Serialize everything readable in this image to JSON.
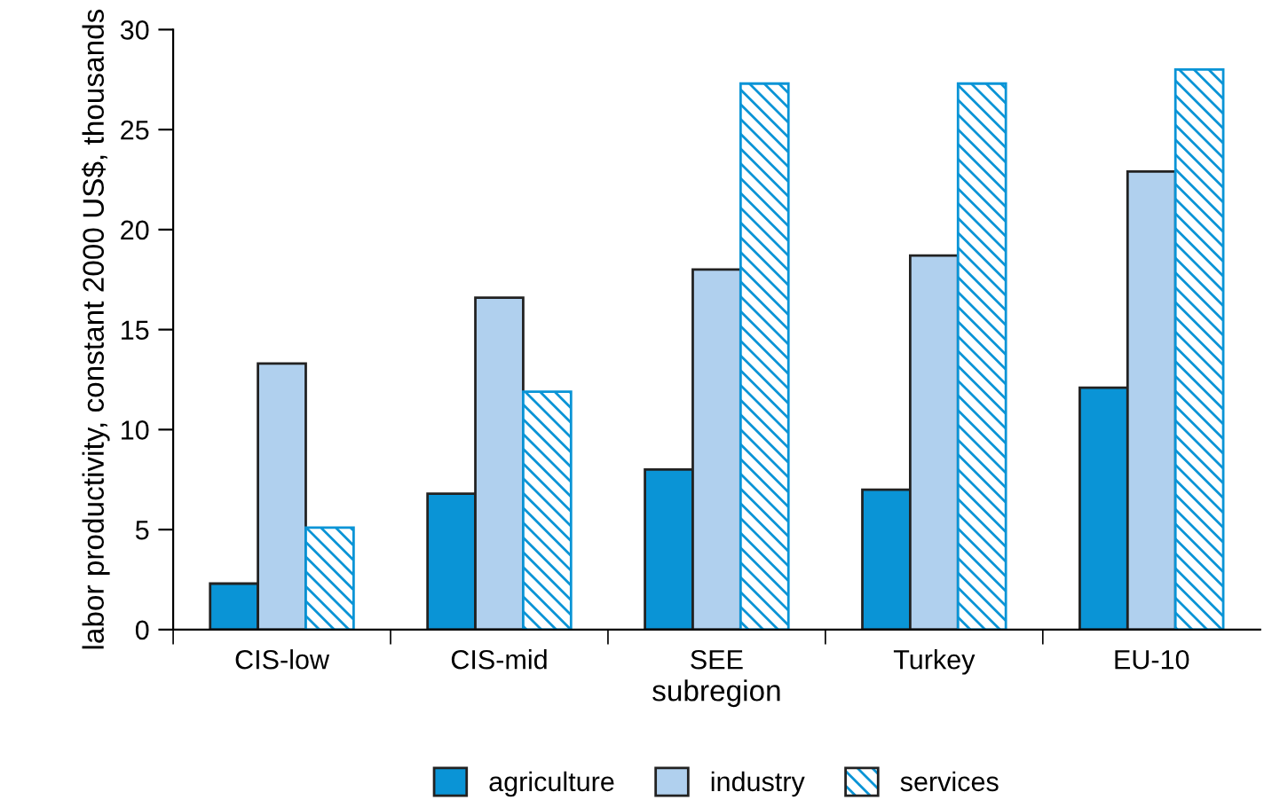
{
  "chart_data": {
    "type": "bar",
    "xlabel": "subregion",
    "ylabel": "labor productivity, constant 2000 US$, thousands",
    "categories": [
      "CIS-low",
      "CIS-mid",
      "SEE",
      "Turkey",
      "EU-10"
    ],
    "series": [
      {
        "name": "agriculture",
        "color": "#0a94d6",
        "values": [
          2.3,
          6.8,
          8.0,
          7.0,
          12.1
        ]
      },
      {
        "name": "industry",
        "color": "#b0d0ee",
        "values": [
          13.3,
          16.6,
          18.0,
          18.7,
          22.9
        ]
      },
      {
        "name": "services",
        "color": "#0a94d6",
        "values": [
          5.1,
          11.9,
          27.3,
          27.3,
          28.0
        ]
      }
    ],
    "ylim": [
      0,
      30
    ],
    "yticks": [
      0,
      5,
      10,
      15,
      20,
      25,
      30
    ],
    "grid": false,
    "legend": "bottom"
  }
}
